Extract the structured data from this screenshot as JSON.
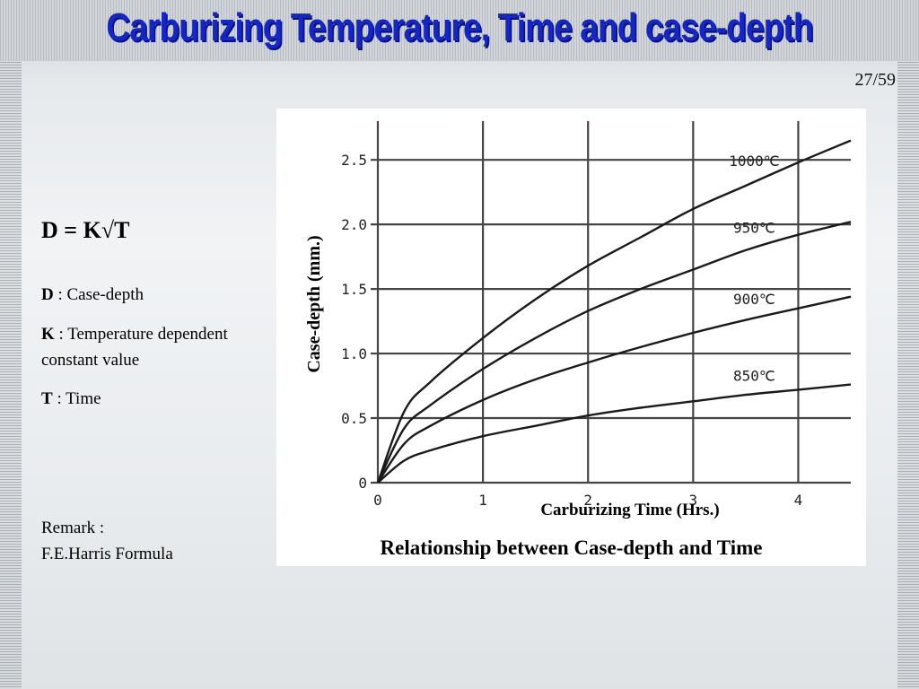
{
  "slide": {
    "title": "Carburizing Temperature, Time and case-depth",
    "page": "27/59",
    "formula": "D = K√T",
    "definitions": [
      {
        "term": "D",
        "text": " : Case-depth"
      },
      {
        "term": "K",
        "text": " : Temperature dependent constant value"
      },
      {
        "term": "T",
        "text": " : Time"
      }
    ],
    "remark_line1": "Remark :",
    "remark_line2": "F.E.Harris Formula",
    "caption": "Relationship between Case-depth and Time"
  },
  "colors": {
    "title": "#1426c8",
    "curve": "#1a1a1a",
    "grid": "#444444"
  },
  "chart_data": {
    "type": "line",
    "xlabel": "Carburizing Time (Hrs.)",
    "ylabel": "Case-depth (mm.)",
    "xlim": [
      0,
      4.5
    ],
    "ylim": [
      0,
      2.8
    ],
    "x_ticks": [
      0,
      1,
      2,
      3,
      4
    ],
    "y_ticks": [
      0,
      0.5,
      1.0,
      1.5,
      2.0,
      2.5
    ],
    "y_tick_labels": [
      "0",
      "0.5",
      "1.0",
      "1.5",
      "2.0",
      "2.5"
    ],
    "grid": true,
    "legend": "inline labels",
    "series": [
      {
        "name": "1000℃",
        "x": [
          0,
          0.25,
          0.5,
          1,
          1.5,
          2,
          2.5,
          3,
          3.5,
          4,
          4.5
        ],
        "y": [
          0,
          0.55,
          0.78,
          1.12,
          1.42,
          1.68,
          1.9,
          2.12,
          2.3,
          2.48,
          2.65
        ]
      },
      {
        "name": "950℃",
        "x": [
          0,
          0.25,
          0.5,
          1,
          1.5,
          2,
          2.5,
          3,
          3.5,
          4,
          4.5
        ],
        "y": [
          0,
          0.42,
          0.6,
          0.88,
          1.12,
          1.33,
          1.5,
          1.65,
          1.8,
          1.92,
          2.02
        ]
      },
      {
        "name": "900℃",
        "x": [
          0,
          0.25,
          0.5,
          1,
          1.5,
          2,
          2.5,
          3,
          3.5,
          4,
          4.5
        ],
        "y": [
          0,
          0.3,
          0.44,
          0.64,
          0.8,
          0.93,
          1.05,
          1.16,
          1.26,
          1.35,
          1.44
        ]
      },
      {
        "name": "850℃",
        "x": [
          0,
          0.25,
          0.5,
          1,
          1.5,
          2,
          2.5,
          3,
          3.5,
          4,
          4.5
        ],
        "y": [
          0,
          0.17,
          0.25,
          0.36,
          0.44,
          0.52,
          0.58,
          0.63,
          0.68,
          0.72,
          0.76
        ]
      }
    ]
  }
}
